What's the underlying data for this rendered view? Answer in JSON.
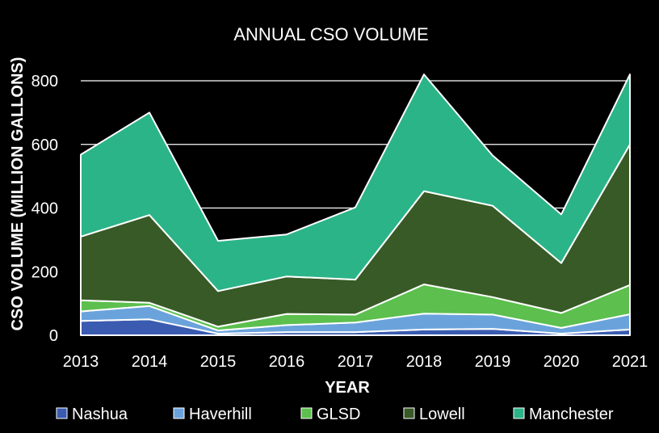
{
  "chart_data": {
    "type": "area",
    "stacked": true,
    "title": "ANNUAL CSO VOLUME",
    "xlabel": "YEAR",
    "ylabel": "CSO VOLUME (MILLION GALLONS)",
    "categories": [
      "2013",
      "2014",
      "2015",
      "2016",
      "2017",
      "2018",
      "2019",
      "2020",
      "2021"
    ],
    "ylim": [
      0,
      800
    ],
    "yticks": [
      "0",
      "200",
      "400",
      "600",
      "800"
    ],
    "grid": true,
    "legend_position": "bottom",
    "series": [
      {
        "name": "Nashua",
        "color": "#3a5bb0",
        "values": [
          45,
          50,
          5,
          10,
          10,
          18,
          20,
          5,
          18
        ]
      },
      {
        "name": "Haverhill",
        "color": "#6aa3dc",
        "values": [
          30,
          42,
          10,
          22,
          30,
          50,
          45,
          18,
          48
        ]
      },
      {
        "name": "GLSD",
        "color": "#5cbf4e",
        "values": [
          35,
          10,
          12,
          35,
          25,
          92,
          55,
          47,
          92
        ]
      },
      {
        "name": "Lowell",
        "color": "#385a26",
        "values": [
          200,
          276,
          112,
          118,
          110,
          293,
          287,
          157,
          442
        ]
      },
      {
        "name": "Manchester",
        "color": "#2bb487",
        "values": [
          258,
          322,
          158,
          132,
          227,
          367,
          158,
          153,
          220
        ]
      }
    ]
  }
}
